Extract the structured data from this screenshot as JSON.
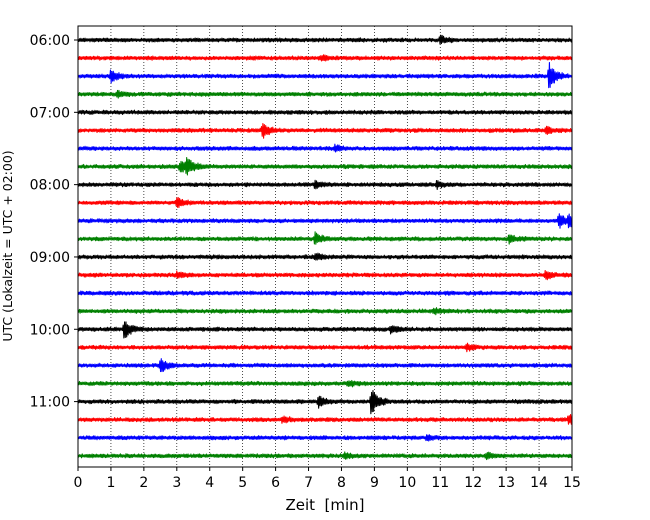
{
  "chart_data": {
    "type": "line",
    "subtype": "seismic-helicorder",
    "title": "",
    "xlabel": "Zeit  [min]",
    "ylabel": "UTC (Lokalzeit = UTC + 02:00)",
    "xlim": [
      0,
      15
    ],
    "x_ticks": [
      "0",
      "1",
      "2",
      "3",
      "4",
      "5",
      "6",
      "7",
      "8",
      "9",
      "10",
      "11",
      "12",
      "13",
      "14",
      "15"
    ],
    "y_tick_labels": [
      "06:00",
      "07:00",
      "08:00",
      "09:00",
      "10:00",
      "11:00"
    ],
    "vertical_grid": true,
    "grid_style": "dotted",
    "traces_per_hour": 4,
    "trace_minutes": 15,
    "colors": [
      "#000000",
      "#ff0000",
      "#0000ff",
      "#008000"
    ],
    "traces": [
      {
        "start": "06:00",
        "color": "#000000",
        "events": [
          {
            "x": 11.0,
            "amp": 4
          }
        ]
      },
      {
        "start": "06:15",
        "color": "#ff0000",
        "events": [
          {
            "x": 7.4,
            "amp": 3
          }
        ]
      },
      {
        "start": "06:30",
        "color": "#0000ff",
        "events": [
          {
            "x": 1.0,
            "amp": 6
          },
          {
            "x": 14.3,
            "amp": 13
          }
        ]
      },
      {
        "start": "06:45",
        "color": "#008000",
        "events": [
          {
            "x": 1.2,
            "amp": 3
          }
        ]
      },
      {
        "start": "07:00",
        "color": "#000000",
        "events": []
      },
      {
        "start": "07:15",
        "color": "#ff0000",
        "events": [
          {
            "x": 5.6,
            "amp": 7
          },
          {
            "x": 14.2,
            "amp": 3
          }
        ]
      },
      {
        "start": "07:30",
        "color": "#0000ff",
        "events": [
          {
            "x": 7.8,
            "amp": 3
          }
        ]
      },
      {
        "start": "07:45",
        "color": "#008000",
        "events": [
          {
            "x": 3.1,
            "amp": 6
          },
          {
            "x": 3.3,
            "amp": 7
          }
        ]
      },
      {
        "start": "08:00",
        "color": "#000000",
        "events": [
          {
            "x": 7.2,
            "amp": 3
          },
          {
            "x": 10.9,
            "amp": 3
          }
        ]
      },
      {
        "start": "08:15",
        "color": "#ff0000",
        "events": [
          {
            "x": 3.0,
            "amp": 5
          }
        ]
      },
      {
        "start": "08:30",
        "color": "#0000ff",
        "events": [
          {
            "x": 14.6,
            "amp": 7
          },
          {
            "x": 14.9,
            "amp": 6
          }
        ]
      },
      {
        "start": "08:45",
        "color": "#008000",
        "events": [
          {
            "x": 7.2,
            "amp": 6
          },
          {
            "x": 13.1,
            "amp": 4
          }
        ]
      },
      {
        "start": "09:00",
        "color": "#000000",
        "events": [
          {
            "x": 7.2,
            "amp": 3
          }
        ]
      },
      {
        "start": "09:15",
        "color": "#ff0000",
        "events": [
          {
            "x": 3.0,
            "amp": 3
          },
          {
            "x": 14.2,
            "amp": 4
          }
        ]
      },
      {
        "start": "09:30",
        "color": "#0000ff",
        "events": []
      },
      {
        "start": "09:45",
        "color": "#008000",
        "events": [
          {
            "x": 10.8,
            "amp": 3
          }
        ]
      },
      {
        "start": "10:00",
        "color": "#000000",
        "events": [
          {
            "x": 1.4,
            "amp": 10
          },
          {
            "x": 9.5,
            "amp": 4
          }
        ]
      },
      {
        "start": "10:15",
        "color": "#ff0000",
        "events": [
          {
            "x": 11.8,
            "amp": 3
          }
        ]
      },
      {
        "start": "10:30",
        "color": "#0000ff",
        "events": [
          {
            "x": 2.5,
            "amp": 7
          }
        ]
      },
      {
        "start": "10:45",
        "color": "#008000",
        "events": [
          {
            "x": 8.2,
            "amp": 3
          }
        ]
      },
      {
        "start": "11:00",
        "color": "#000000",
        "events": [
          {
            "x": 7.3,
            "amp": 5
          },
          {
            "x": 8.9,
            "amp": 15
          }
        ]
      },
      {
        "start": "11:15",
        "color": "#ff0000",
        "events": [
          {
            "x": 6.2,
            "amp": 3
          },
          {
            "x": 14.9,
            "amp": 5
          }
        ]
      },
      {
        "start": "11:30",
        "color": "#0000ff",
        "events": [
          {
            "x": 10.6,
            "amp": 3
          }
        ]
      },
      {
        "start": "11:45",
        "color": "#008000",
        "events": [
          {
            "x": 8.1,
            "amp": 3
          },
          {
            "x": 12.4,
            "amp": 3
          }
        ]
      }
    ]
  }
}
